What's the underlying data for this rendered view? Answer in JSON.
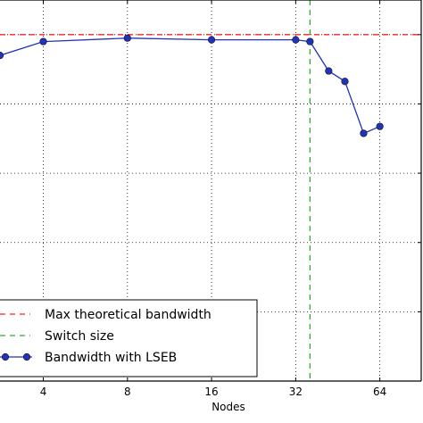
{
  "chart_data": {
    "type": "line",
    "xlabel": "Nodes",
    "ylabel": "",
    "x_scale": "log2",
    "xlim": [
      2.8,
      90
    ],
    "ylim": [
      0,
      1.1
    ],
    "x_ticks": [
      4,
      8,
      16,
      32,
      64
    ],
    "x_tick_labels": [
      "4",
      "8",
      "16",
      "32",
      "64"
    ],
    "grid": true,
    "legend_placement": "bottom-left",
    "reference_lines": [
      {
        "name": "Max theoretical bandwidth",
        "orientation": "horizontal",
        "value": 1.0,
        "style": "dashed",
        "color": "#ff2020"
      },
      {
        "name": "Switch size",
        "orientation": "vertical",
        "value": 36,
        "style": "dashed",
        "color": "#33aa33"
      }
    ],
    "series": [
      {
        "name": "Bandwidth with LSEB",
        "color": "#2233bb",
        "marker": "circle",
        "x": [
          2.8,
          4,
          8,
          16,
          32,
          36,
          42,
          48,
          56,
          64
        ],
        "y": [
          0.94,
          0.98,
          0.99,
          0.985,
          0.985,
          0.98,
          0.895,
          0.865,
          0.715,
          0.735
        ]
      }
    ]
  },
  "legend": {
    "items": [
      {
        "label": "Max theoretical bandwidth",
        "color": "#ff2020",
        "style": "dashed"
      },
      {
        "label": "Switch size",
        "color": "#33aa33",
        "style": "dashed"
      },
      {
        "label": "Bandwidth with LSEB",
        "color": "#2233bb",
        "style": "line-marker"
      }
    ]
  }
}
